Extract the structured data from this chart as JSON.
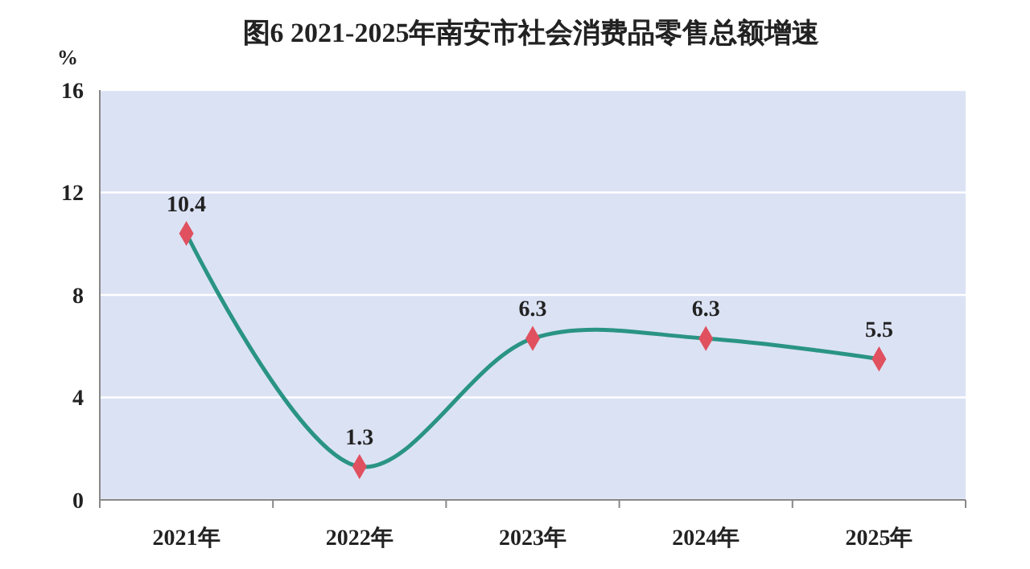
{
  "chart_data": {
    "type": "line",
    "title": "图6  2021-2025年南安市社会消费品零售总额增速",
    "ylabel": "%",
    "categories": [
      "2021年",
      "2022年",
      "2023年",
      "2024年",
      "2025年"
    ],
    "series": [
      {
        "color": "#2a9484",
        "colors": [
          "#e0505f",
          "#e0505f",
          "#e0505f",
          "#e0505f",
          "#e0505f"
        ],
        "values": [
          10.4,
          1.3,
          6.3,
          6.3,
          5.5
        ]
      }
    ],
    "marker": "diamond",
    "ylim": [
      0,
      16
    ],
    "yticks": [
      0,
      4,
      8,
      12,
      16
    ],
    "grid": "y",
    "data_labels": true
  }
}
